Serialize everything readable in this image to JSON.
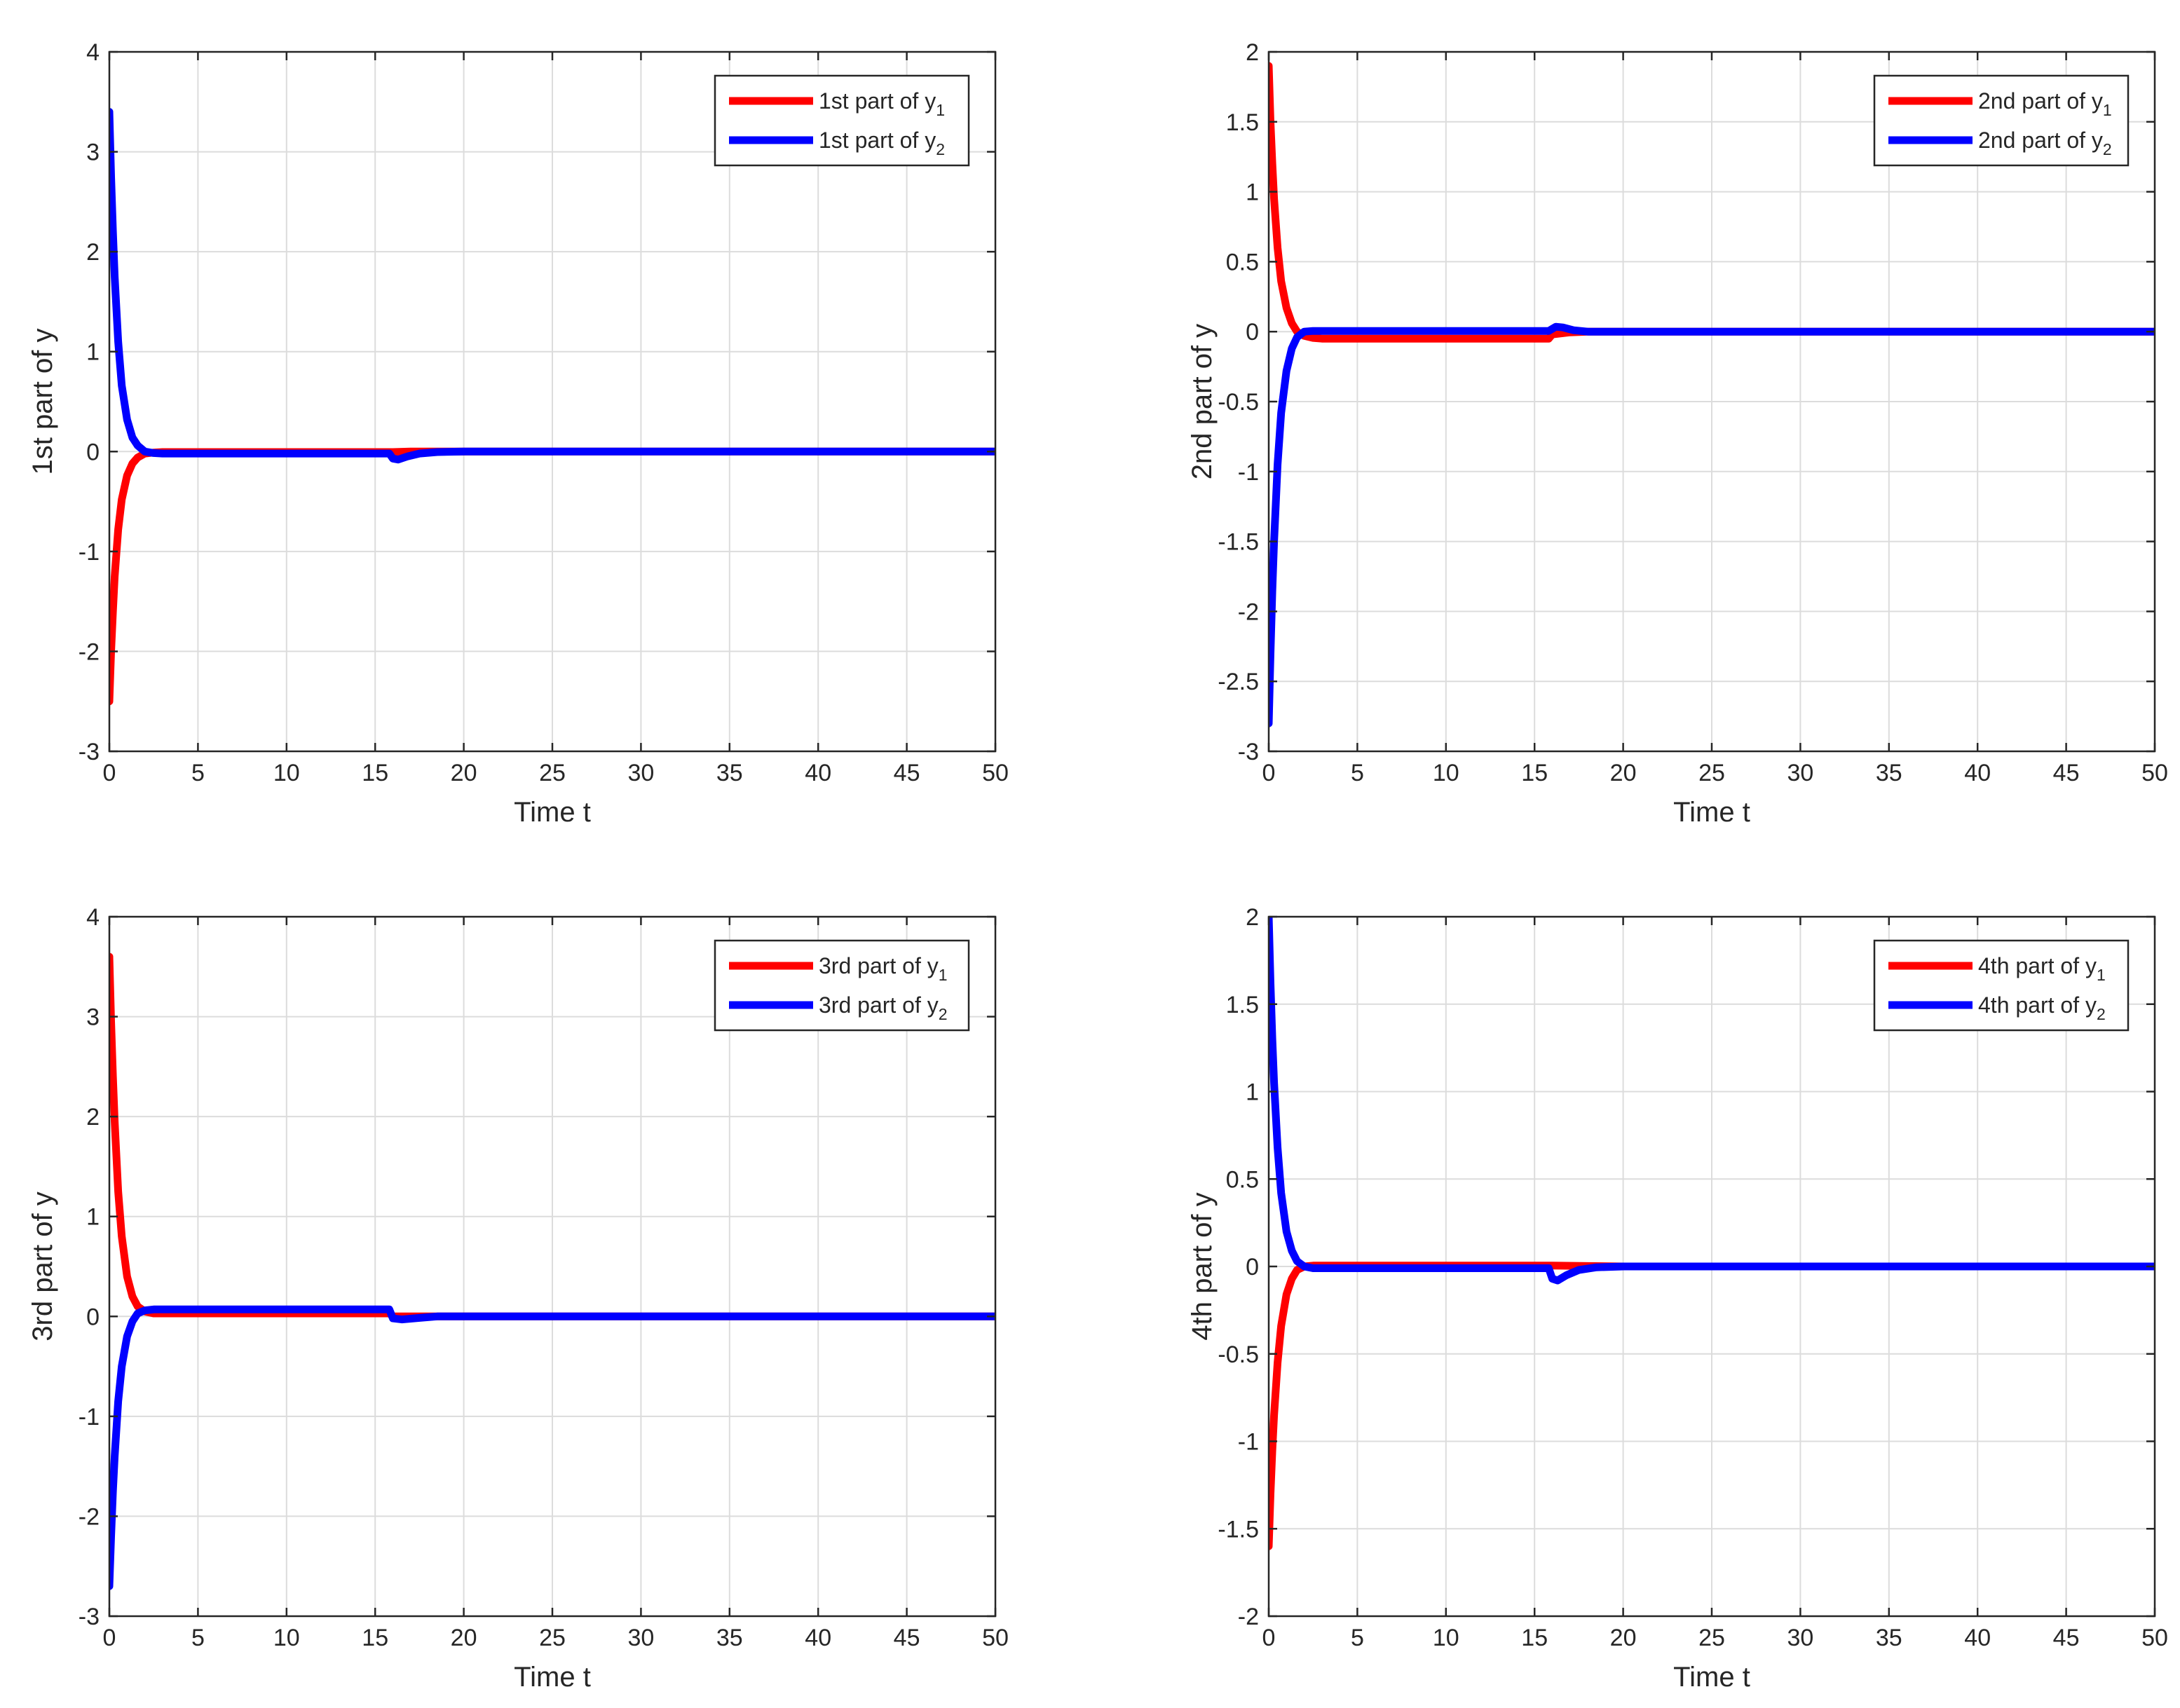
{
  "colors": {
    "series1": "#ff0000",
    "series2": "#0000ff",
    "grid": "#dcdcdc",
    "axis": "#262626",
    "background": "#ffffff"
  },
  "chart_data": [
    {
      "type": "line",
      "xlabel": "Time t",
      "ylabel": "1st part of y",
      "xlim": [
        0,
        50
      ],
      "ylim": [
        -3,
        4
      ],
      "xticks": [
        0,
        5,
        10,
        15,
        20,
        25,
        30,
        35,
        40,
        45,
        50
      ],
      "yticks": [
        -3,
        -2,
        -1,
        0,
        1,
        2,
        3,
        4
      ],
      "grid": true,
      "legend_placement": "top-right",
      "series": [
        {
          "legend_main": "1st part of y",
          "legend_sub": "1",
          "color": "#ff0000",
          "x": [
            0,
            0.1,
            0.2,
            0.3,
            0.5,
            0.7,
            1.0,
            1.3,
            1.6,
            2.0,
            2.5,
            3,
            16,
            17,
            20,
            30,
            50
          ],
          "y": [
            -2.5,
            -2.0,
            -1.6,
            -1.25,
            -0.78,
            -0.48,
            -0.24,
            -0.12,
            -0.06,
            -0.02,
            -0.01,
            -0.005,
            -0.005,
            0,
            0,
            0,
            0
          ]
        },
        {
          "legend_main": "1st part of y",
          "legend_sub": "2",
          "color": "#0000ff",
          "x": [
            0,
            0.1,
            0.2,
            0.3,
            0.5,
            0.7,
            1.0,
            1.3,
            1.6,
            2.0,
            2.5,
            3,
            15.8,
            16,
            16.3,
            16.8,
            17.5,
            18.5,
            20,
            30,
            50
          ],
          "y": [
            3.4,
            2.75,
            2.2,
            1.75,
            1.1,
            0.66,
            0.32,
            0.14,
            0.06,
            0.0,
            -0.015,
            -0.02,
            -0.02,
            -0.07,
            -0.08,
            -0.05,
            -0.02,
            -0.005,
            0,
            0,
            0
          ]
        }
      ]
    },
    {
      "type": "line",
      "xlabel": "Time t",
      "ylabel": "2nd part of y",
      "xlim": [
        0,
        50
      ],
      "ylim": [
        -3,
        2
      ],
      "xticks": [
        0,
        5,
        10,
        15,
        20,
        25,
        30,
        35,
        40,
        45,
        50
      ],
      "yticks": [
        -3,
        -2.5,
        -2,
        -1.5,
        -1,
        -0.5,
        0,
        0.5,
        1,
        1.5,
        2
      ],
      "grid": true,
      "legend_placement": "top-right",
      "series": [
        {
          "legend_main": "2nd part of y",
          "legend_sub": "1",
          "color": "#ff0000",
          "x": [
            0,
            0.1,
            0.2,
            0.3,
            0.5,
            0.7,
            1.0,
            1.3,
            1.6,
            2.0,
            2.5,
            3,
            15.8,
            16,
            17,
            18,
            20,
            30,
            50
          ],
          "y": [
            1.9,
            1.5,
            1.2,
            0.95,
            0.6,
            0.36,
            0.17,
            0.06,
            0.0,
            -0.03,
            -0.045,
            -0.05,
            -0.05,
            -0.02,
            -0.005,
            0,
            0,
            0,
            0
          ]
        },
        {
          "legend_main": "2nd part of y",
          "legend_sub": "2",
          "color": "#0000ff",
          "x": [
            0,
            0.1,
            0.2,
            0.3,
            0.5,
            0.7,
            1.0,
            1.3,
            1.6,
            2.0,
            2.5,
            3,
            15.8,
            16.2,
            16.6,
            17.2,
            18,
            20,
            30,
            50
          ],
          "y": [
            -2.8,
            -2.3,
            -1.85,
            -1.5,
            -0.95,
            -0.58,
            -0.28,
            -0.12,
            -0.04,
            0.0,
            0.005,
            0.005,
            0.005,
            0.035,
            0.03,
            0.01,
            0.0,
            0,
            0,
            0
          ]
        }
      ]
    },
    {
      "type": "line",
      "xlabel": "Time t",
      "ylabel": "3rd part of y",
      "xlim": [
        0,
        50
      ],
      "ylim": [
        -3,
        4
      ],
      "xticks": [
        0,
        5,
        10,
        15,
        20,
        25,
        30,
        35,
        40,
        45,
        50
      ],
      "yticks": [
        -3,
        -2,
        -1,
        0,
        1,
        2,
        3,
        4
      ],
      "grid": true,
      "legend_placement": "top-right",
      "series": [
        {
          "legend_main": "3rd part of y",
          "legend_sub": "1",
          "color": "#ff0000",
          "x": [
            0,
            0.1,
            0.2,
            0.3,
            0.5,
            0.7,
            1.0,
            1.3,
            1.6,
            2.0,
            2.5,
            3,
            15.8,
            16,
            17,
            20,
            30,
            50
          ],
          "y": [
            3.6,
            2.95,
            2.4,
            1.95,
            1.25,
            0.8,
            0.4,
            0.2,
            0.1,
            0.05,
            0.03,
            0.03,
            0.03,
            0.0,
            0,
            0,
            0,
            0
          ]
        },
        {
          "legend_main": "3rd part of y",
          "legend_sub": "2",
          "color": "#0000ff",
          "x": [
            0,
            0.1,
            0.2,
            0.3,
            0.5,
            0.7,
            1.0,
            1.3,
            1.6,
            2.0,
            2.5,
            3,
            15.8,
            16,
            16.5,
            17.5,
            18.5,
            20,
            30,
            50
          ],
          "y": [
            -2.7,
            -2.2,
            -1.75,
            -1.4,
            -0.85,
            -0.5,
            -0.2,
            -0.05,
            0.03,
            0.06,
            0.07,
            0.07,
            0.07,
            -0.02,
            -0.03,
            -0.015,
            0.0,
            0,
            0,
            0
          ]
        }
      ]
    },
    {
      "type": "line",
      "xlabel": "Time t",
      "ylabel": "4th part of y",
      "xlim": [
        0,
        50
      ],
      "ylim": [
        -2,
        2
      ],
      "xticks": [
        0,
        5,
        10,
        15,
        20,
        25,
        30,
        35,
        40,
        45,
        50
      ],
      "yticks": [
        -2,
        -1.5,
        -1,
        -0.5,
        0,
        0.5,
        1,
        1.5,
        2
      ],
      "grid": true,
      "legend_placement": "top-right",
      "series": [
        {
          "legend_main": "4th part of y",
          "legend_sub": "1",
          "color": "#ff0000",
          "x": [
            0,
            0.1,
            0.2,
            0.3,
            0.5,
            0.7,
            1.0,
            1.3,
            1.6,
            2.0,
            2.5,
            3,
            16,
            20,
            30,
            50
          ],
          "y": [
            -1.6,
            -1.3,
            -1.05,
            -0.85,
            -0.55,
            -0.34,
            -0.16,
            -0.07,
            -0.02,
            0.0,
            0.005,
            0.005,
            0.005,
            0,
            0,
            0
          ]
        },
        {
          "legend_main": "4th part of y",
          "legend_sub": "2",
          "color": "#0000ff",
          "x": [
            0,
            0.1,
            0.2,
            0.3,
            0.5,
            0.7,
            1.0,
            1.3,
            1.6,
            2.0,
            2.5,
            3,
            15.8,
            16,
            16.3,
            16.8,
            17.5,
            18.5,
            20,
            30,
            50
          ],
          "y": [
            2.0,
            1.62,
            1.3,
            1.05,
            0.68,
            0.42,
            0.2,
            0.09,
            0.03,
            0.0,
            -0.01,
            -0.01,
            -0.01,
            -0.07,
            -0.08,
            -0.05,
            -0.02,
            -0.005,
            0,
            0,
            0
          ]
        }
      ]
    }
  ]
}
